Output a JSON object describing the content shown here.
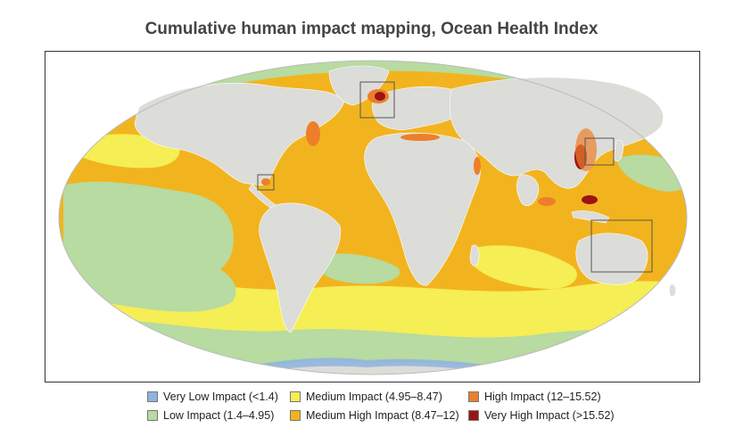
{
  "title": "Cumulative human impact mapping, Ocean Health Index",
  "map": {
    "projection": "mollweide",
    "land_color": "#dcdcd8",
    "regions_highlighted": [
      "north-sea",
      "caribbean",
      "east-asia",
      "coral-triangle"
    ]
  },
  "legend": {
    "items": [
      {
        "label": "Very Low Impact (<1.4)",
        "color": "#8fb3e0"
      },
      {
        "label": "Low Impact (1.4–4.95)",
        "color": "#b7dba0"
      },
      {
        "label": "Medium Impact (4.95–8.47)",
        "color": "#f5ee55"
      },
      {
        "label": "Medium High Impact (8.47–12)",
        "color": "#f2b41e"
      },
      {
        "label": "High Impact (12–15.52)",
        "color": "#ec7f2c"
      },
      {
        "label": "Very High Impact (>15.52)",
        "color": "#9b1414"
      }
    ]
  }
}
